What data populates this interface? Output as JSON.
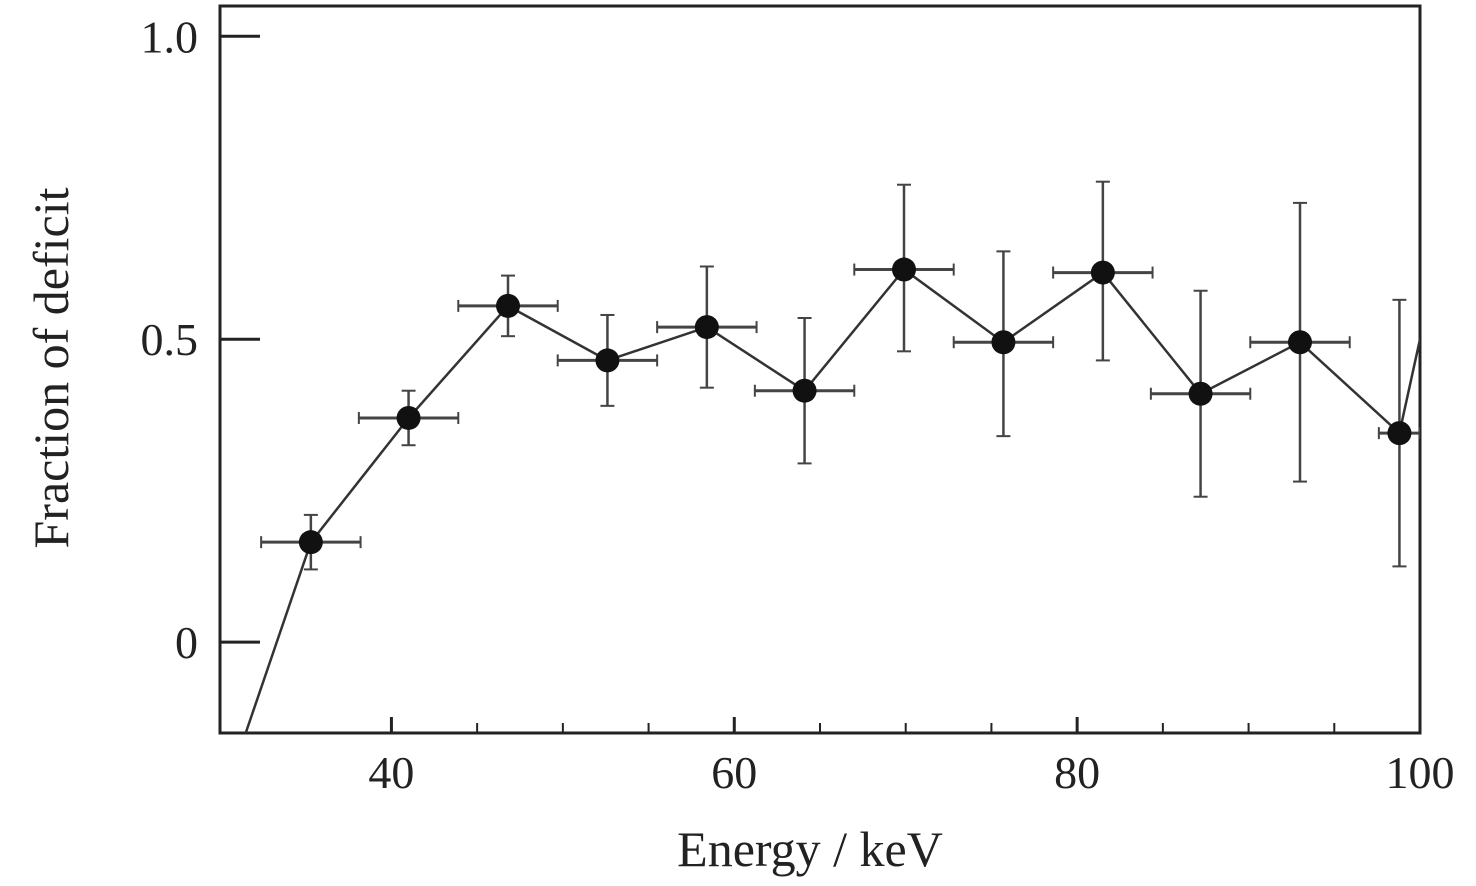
{
  "chart_data": {
    "type": "scatter",
    "xlabel": "Energy / keV",
    "ylabel": "Fraction of deficit",
    "xlim": [
      30,
      100
    ],
    "ylim": [
      -0.15,
      1.05
    ],
    "x_ticks": [
      40,
      60,
      80,
      100
    ],
    "x_tick_labels": [
      "40",
      "60",
      "80",
      "100"
    ],
    "x_minor_ticks": [
      45,
      50,
      55,
      65,
      70,
      75,
      85,
      90,
      95
    ],
    "y_ticks": [
      0,
      0.5,
      1.0
    ],
    "y_tick_labels": [
      "0",
      "0.5",
      "1.0"
    ],
    "grid": false,
    "legend": "none",
    "connect_points": true,
    "line_extends_to": {
      "left": [
        31.5,
        -0.15
      ],
      "right": [
        100,
        0.5
      ]
    },
    "points": [
      {
        "x": 35.3,
        "y": 0.165,
        "x_err": 2.9,
        "y_err_low": 0.045,
        "y_err_high": 0.045
      },
      {
        "x": 41.0,
        "y": 0.37,
        "x_err": 2.9,
        "y_err_low": 0.045,
        "y_err_high": 0.045
      },
      {
        "x": 46.8,
        "y": 0.555,
        "x_err": 2.9,
        "y_err_low": 0.05,
        "y_err_high": 0.05
      },
      {
        "x": 52.6,
        "y": 0.465,
        "x_err": 2.9,
        "y_err_low": 0.075,
        "y_err_high": 0.075
      },
      {
        "x": 58.4,
        "y": 0.52,
        "x_err": 2.9,
        "y_err_low": 0.1,
        "y_err_high": 0.1
      },
      {
        "x": 64.1,
        "y": 0.415,
        "x_err": 2.9,
        "y_err_low": 0.12,
        "y_err_high": 0.12
      },
      {
        "x": 69.9,
        "y": 0.615,
        "x_err": 2.9,
        "y_err_low": 0.135,
        "y_err_high": 0.14
      },
      {
        "x": 75.7,
        "y": 0.495,
        "x_err": 2.9,
        "y_err_low": 0.155,
        "y_err_high": 0.15
      },
      {
        "x": 81.5,
        "y": 0.61,
        "x_err": 2.9,
        "y_err_low": 0.145,
        "y_err_high": 0.15
      },
      {
        "x": 87.2,
        "y": 0.41,
        "x_err": 2.9,
        "y_err_low": 0.17,
        "y_err_high": 0.17
      },
      {
        "x": 93.0,
        "y": 0.495,
        "x_err": 2.9,
        "y_err_low": 0.23,
        "y_err_high": 0.23
      },
      {
        "x": 98.8,
        "y": 0.345,
        "x_err": 1.2,
        "y_err_low": 0.22,
        "y_err_high": 0.22
      }
    ],
    "colors": {
      "marker": "#111111",
      "line": "#333333",
      "axes": "#222222",
      "error_bar": "#444444"
    }
  }
}
